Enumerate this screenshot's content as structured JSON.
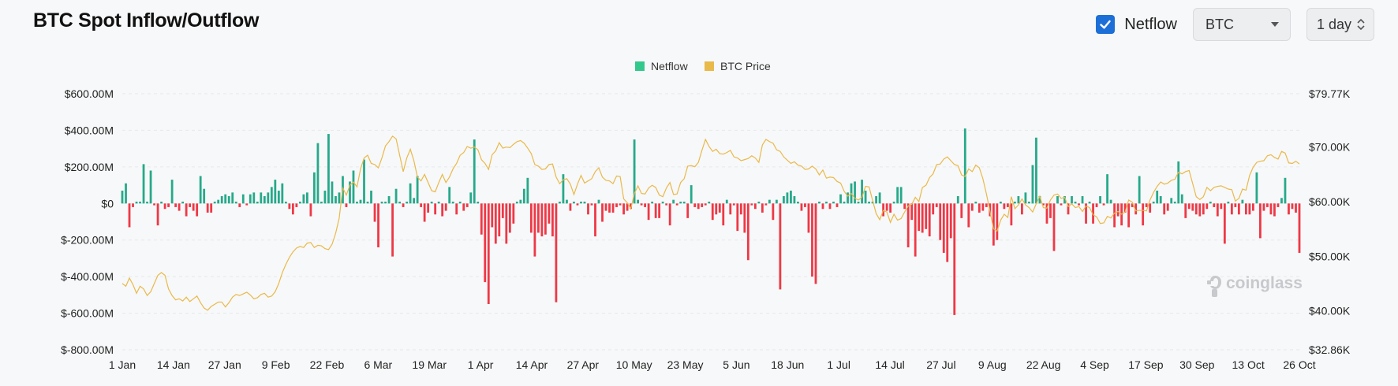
{
  "page": {
    "title": "BTC Spot Inflow/Outflow",
    "netflow_toggle": {
      "label": "Netflow",
      "checked": true
    },
    "coin_select": {
      "value": "BTC"
    },
    "interval_select": {
      "value": "1 day"
    },
    "watermark": "coinglass"
  },
  "colors": {
    "inflow": "#26a98a",
    "outflow": "#ee3846",
    "price": "#e9b94a",
    "legend_netflow": "#34c98c",
    "legend_price": "#e9b94a"
  },
  "chart_data": {
    "type": "bar+line",
    "legend": [
      "Netflow",
      "BTC Price"
    ],
    "left_axis": {
      "ticks": [
        "$600.00M",
        "$400.00M",
        "$200.00M",
        "$0",
        "$-200.00M",
        "$-400.00M",
        "$-600.00M",
        "$-800.00M"
      ],
      "range_musd": [
        -800,
        600
      ]
    },
    "right_axis": {
      "ticks": [
        "$79.77K",
        "$70.00K",
        "$60.00K",
        "$50.00K",
        "$40.00K",
        "$32.86K"
      ],
      "range_usd": [
        32860,
        79770
      ]
    },
    "x_ticks": [
      "1 Jan",
      "14 Jan",
      "27 Jan",
      "9 Feb",
      "22 Feb",
      "6 Mar",
      "19 Mar",
      "1 Apr",
      "14 Apr",
      "27 Apr",
      "10 May",
      "23 May",
      "5 Jun",
      "18 Jun",
      "1 Jul",
      "14 Jul",
      "27 Jul",
      "9 Aug",
      "22 Aug",
      "4 Sep",
      "17 Sep",
      "30 Sep",
      "13 Oct",
      "26 Oct"
    ],
    "netflow_musd": [
      70,
      110,
      -130,
      -20,
      10,
      10,
      215,
      10,
      180,
      -10,
      -120,
      10,
      -30,
      -20,
      130,
      -20,
      -40,
      10,
      -70,
      -20,
      -40,
      -70,
      150,
      80,
      -50,
      -50,
      10,
      20,
      40,
      50,
      40,
      60,
      10,
      -20,
      50,
      -10,
      50,
      60,
      10,
      60,
      40,
      60,
      90,
      130,
      70,
      110,
      10,
      -30,
      -60,
      -20,
      10,
      50,
      60,
      -70,
      170,
      330,
      10,
      70,
      380,
      120,
      40,
      60,
      150,
      -20,
      120,
      180,
      10,
      20,
      240,
      10,
      70,
      -100,
      -240,
      10,
      10,
      40,
      -290,
      80,
      10,
      -20,
      10,
      110,
      30,
      150,
      -20,
      -100,
      -50,
      10,
      -60,
      10,
      -70,
      -40,
      90,
      10,
      -60,
      10,
      -40,
      -20,
      60,
      350,
      10,
      -170,
      -430,
      -550,
      -130,
      -220,
      -180,
      -80,
      -220,
      -160,
      -110,
      10,
      20,
      80,
      140,
      -160,
      -290,
      -160,
      -180,
      -170,
      -110,
      -180,
      -540,
      10,
      160,
      20,
      -40,
      10,
      -10,
      10,
      10,
      -60,
      -10,
      -180,
      20,
      -100,
      -40,
      -50,
      -50,
      -20,
      -10,
      -60,
      -40,
      -30,
      350,
      20,
      -10,
      -20,
      -90,
      10,
      -80,
      -80,
      10,
      -10,
      -120,
      20,
      -10,
      10,
      10,
      -80,
      100,
      -20,
      -30,
      -20,
      -10,
      10,
      -90,
      -60,
      -50,
      -120,
      20,
      -60,
      -10,
      -150,
      -60,
      -160,
      -310,
      -10,
      -30,
      10,
      -50,
      -10,
      20,
      -90,
      20,
      -470,
      40,
      60,
      70,
      40,
      10,
      -40,
      -20,
      -160,
      -400,
      -440,
      10,
      -30,
      10,
      -30,
      10,
      -20,
      50,
      10,
      60,
      110,
      120,
      10,
      130,
      70,
      10,
      10,
      40,
      60,
      -70,
      -40,
      -50,
      10,
      90,
      90,
      -30,
      -240,
      -90,
      -290,
      -150,
      -160,
      -140,
      -180,
      -60,
      -20,
      -200,
      -270,
      -320,
      -190,
      -610,
      40,
      -80,
      410,
      -130,
      -40,
      10,
      -50,
      -40,
      -20,
      -70,
      -230,
      -200,
      10,
      -30,
      -20,
      -120,
      10,
      40,
      -60,
      60,
      10,
      210,
      360,
      40,
      -10,
      -110,
      -80,
      -260,
      40,
      -10,
      40,
      -60,
      40,
      10,
      -10,
      40,
      -110,
      10,
      -110,
      -20,
      40,
      -10,
      160,
      20,
      -130,
      -70,
      -120,
      -50,
      -130,
      -20,
      -60,
      150,
      -120,
      -20,
      -50,
      10,
      70,
      40,
      -60,
      -40,
      30,
      10,
      230,
      50,
      -80,
      -30,
      -40,
      -60,
      -70,
      -60,
      -30,
      10,
      -20,
      -70,
      -30,
      -220,
      10,
      -60,
      -20,
      -60,
      20,
      -60,
      -60,
      -40,
      170,
      -190,
      -40,
      -20,
      -60,
      -70,
      -20,
      30,
      140,
      -60,
      -30,
      -50,
      -270
    ],
    "price_usd": [
      45000,
      44500,
      46000,
      44800,
      43200,
      44500,
      44000,
      42800,
      43500,
      45000,
      46500,
      47000,
      46500,
      44000,
      42800,
      42000,
      42200,
      41800,
      42500,
      41700,
      42200,
      42700,
      41500,
      40500,
      40100,
      40800,
      41200,
      41600,
      41600,
      40700,
      41500,
      42500,
      43000,
      42800,
      43100,
      43400,
      42900,
      42200,
      42400,
      43000,
      43200,
      42500,
      42700,
      43500,
      45000,
      47000,
      48500,
      49800,
      50800,
      51500,
      51800,
      51600,
      52400,
      52500,
      51600,
      52000,
      51900,
      51400,
      51200,
      52200,
      54200,
      57000,
      62500,
      61200,
      63000,
      63600,
      62700,
      66000,
      68000,
      68500,
      67000,
      66800,
      66200,
      68000,
      70200,
      71000,
      72000,
      71500,
      68500,
      65500,
      68000,
      69600,
      67500,
      64500,
      63800,
      65000,
      63500,
      62000,
      61800,
      63500,
      65000,
      63500,
      64500,
      66000,
      67000,
      68500,
      69000,
      70100,
      69800,
      70000,
      69500,
      67700,
      67000,
      65900,
      68600,
      69300,
      70800,
      69800,
      70000,
      69900,
      70500,
      71000,
      71200,
      70700,
      69800,
      68800,
      66800,
      66500,
      65900,
      66000,
      66800,
      66900,
      64500,
      63300,
      64000,
      64200,
      63200,
      61300,
      63200,
      64800,
      63400,
      63800,
      64200,
      65500,
      66200,
      64500,
      63900,
      63800,
      63300,
      64700,
      64600,
      60500,
      59800,
      58700,
      61500,
      62900,
      61500,
      61400,
      62500,
      63000,
      62600,
      61200,
      60900,
      62500,
      63500,
      61300,
      61400,
      63500,
      64200,
      66500,
      66600,
      66400,
      67200,
      69400,
      71400,
      70100,
      69200,
      69600,
      68800,
      68700,
      69000,
      69400,
      68200,
      68000,
      67500,
      67700,
      67900,
      68400,
      68000,
      67200,
      70400,
      71400,
      71000,
      70700,
      69500,
      69200,
      68200,
      67600,
      67000,
      67300,
      66700,
      66500,
      65900,
      66000,
      66500,
      66000,
      64900,
      65800,
      64300,
      64500,
      64400,
      63700,
      63400,
      61900,
      61000,
      61500,
      60600,
      60300,
      60800,
      62800,
      62700,
      60200,
      57800,
      56700,
      58400,
      58100,
      56200,
      57700,
      56600,
      56900,
      58100,
      59200,
      59500,
      60800,
      60000,
      62600,
      63000,
      64400,
      65100,
      66800,
      66900,
      67800,
      68200,
      67500,
      66800,
      66600,
      64900,
      64600,
      66000,
      65500,
      66700,
      66200,
      64200,
      61400,
      58200,
      55000,
      54600,
      56600,
      57700,
      57100,
      60900,
      58700,
      59400,
      60500,
      59400,
      58900,
      58100,
      59600,
      61000,
      58900,
      58800,
      60300,
      61200,
      61400,
      60600,
      60800,
      59100,
      59600,
      58900,
      59100,
      58200,
      59200,
      58900,
      57600,
      57200,
      56000,
      56100,
      57300,
      57000,
      57900,
      58200,
      57700,
      58100,
      60300,
      59900,
      58300,
      58400,
      58400,
      58300,
      60300,
      61700,
      62800,
      63600,
      63200,
      63400,
      63900,
      64100,
      65400,
      65100,
      65500,
      65700,
      63300,
      60900,
      60400,
      60900,
      62600,
      62000,
      62600,
      62800,
      62900,
      62600,
      62300,
      62200,
      60100,
      60600,
      62300,
      62100,
      64800,
      66300,
      67200,
      67400,
      67500,
      68400,
      68600,
      68100,
      67800,
      69200,
      68900,
      67100,
      67000,
      67400,
      66900
    ]
  }
}
